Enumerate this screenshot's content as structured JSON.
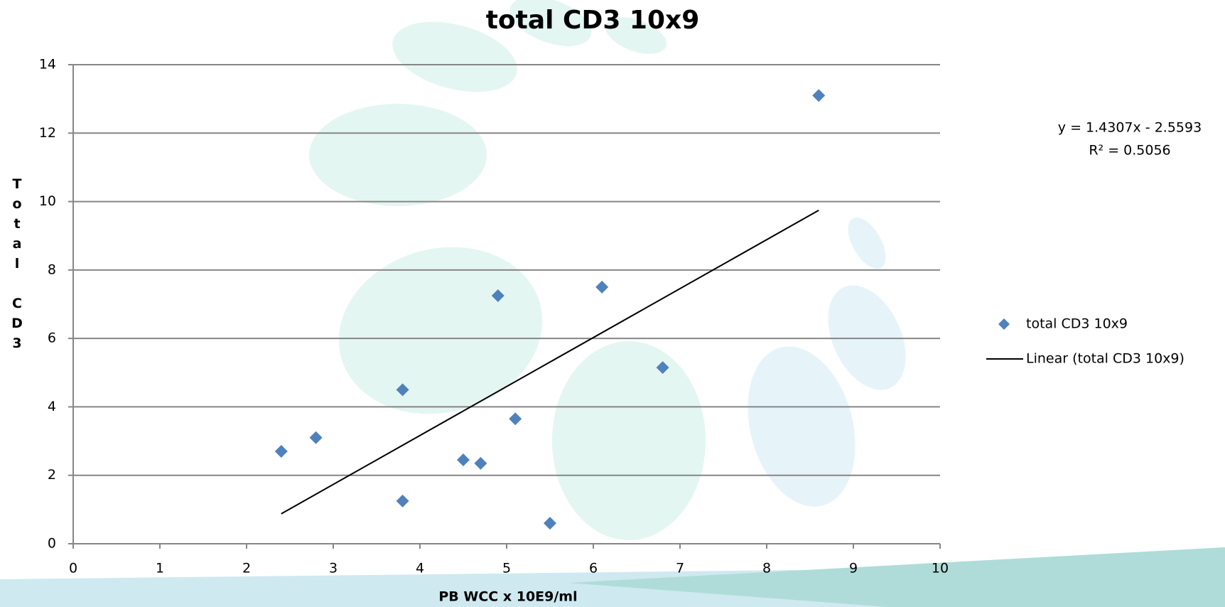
{
  "chart_data": {
    "type": "scatter",
    "title": "total CD3 10x9",
    "x_label": "PB WCC x 10E9/ml",
    "y_label": "Total CD3",
    "series": [
      {
        "name": "total CD3 10x9",
        "color": "#4f81bd",
        "x": [
          2.4,
          2.8,
          3.8,
          3.8,
          4.5,
          4.7,
          4.9,
          5.1,
          5.5,
          6.1,
          6.8,
          8.6
        ],
        "values": [
          2.7,
          3.1,
          4.5,
          1.25,
          2.45,
          2.35,
          7.25,
          3.65,
          0.6,
          7.5,
          5.15,
          13.1
        ]
      }
    ],
    "trendline": {
      "name": "Linear (total CD3 10x9)",
      "color": "#000000",
      "slope": 1.4307,
      "intercept": -2.5593,
      "equation": "y = 1.4307x - 2.5593",
      "r_squared_label": "R² = 0.5056"
    },
    "xlim": [
      0,
      10
    ],
    "xticks": [
      0,
      1,
      2,
      3,
      4,
      5,
      6,
      7,
      8,
      9,
      10
    ],
    "ylim": [
      0,
      14
    ],
    "yticks": [
      0,
      2,
      4,
      6,
      8,
      10,
      12,
      14
    ],
    "grid": true,
    "legend": "right"
  }
}
